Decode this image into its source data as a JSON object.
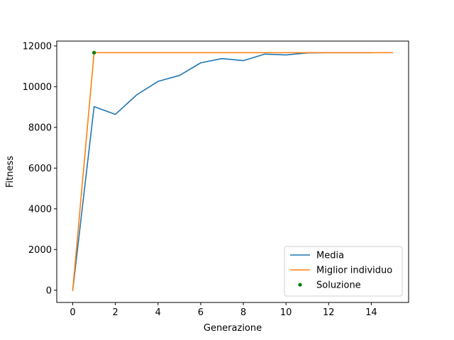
{
  "chart_data": {
    "type": "line",
    "title": "",
    "xlabel": "Generazione",
    "ylabel": "Fitness",
    "xlim": [
      -0.75,
      15.75
    ],
    "ylim": [
      -600,
      12240
    ],
    "xticks": [
      0,
      2,
      4,
      6,
      8,
      10,
      12,
      14
    ],
    "yticks": [
      0,
      2000,
      4000,
      6000,
      8000,
      10000,
      12000
    ],
    "grid": false,
    "legend_position": "lower-right",
    "series": [
      {
        "name": "Media",
        "type": "line",
        "color": "#1f77b4",
        "x": [
          0,
          1,
          2,
          3,
          4,
          5,
          6,
          7,
          8,
          9,
          10,
          11,
          12,
          13,
          14
        ],
        "y": [
          0,
          9020,
          8640,
          9600,
          10260,
          10550,
          11170,
          11380,
          11280,
          11600,
          11560,
          11660,
          11670,
          11670,
          11670
        ]
      },
      {
        "name": "Miglior individuo",
        "type": "line",
        "color": "#ff7f0e",
        "x": [
          0,
          1,
          2,
          3,
          4,
          5,
          6,
          7,
          8,
          9,
          10,
          11,
          12,
          13,
          14,
          15
        ],
        "y": [
          0,
          11670,
          11670,
          11670,
          11670,
          11670,
          11670,
          11670,
          11670,
          11670,
          11670,
          11670,
          11670,
          11670,
          11670,
          11670
        ]
      },
      {
        "name": "Soluzione",
        "type": "scatter",
        "color": "#008000",
        "x": [
          1
        ],
        "y": [
          11670
        ]
      }
    ]
  }
}
